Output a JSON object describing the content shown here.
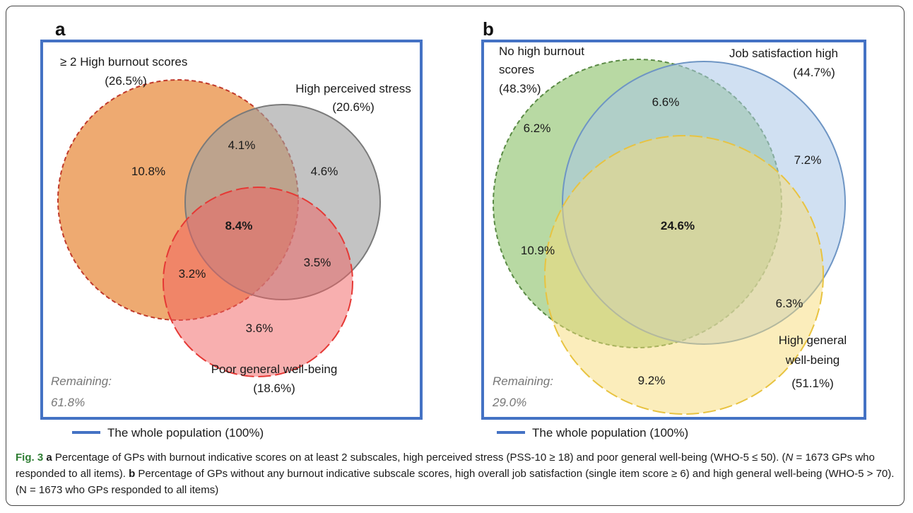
{
  "panels": [
    {
      "letter": "a",
      "sets": [
        {
          "label_line1": "≥ 2 High burnout scores",
          "label_line2": "(26.5%)",
          "color": "#e8893a"
        },
        {
          "label_line1": "High perceived stress",
          "label_line2": "(20.6%)",
          "color": "#9e9e9e"
        },
        {
          "label_line1": "Poor general well-being",
          "label_line2": "(18.6%)",
          "color": "#f26060"
        }
      ],
      "regions": {
        "only_burnout": "10.8%",
        "burnout_stress": "4.1%",
        "only_stress": "4.6%",
        "all_three": "8.4%",
        "burnout_wellbeing": "3.2%",
        "stress_wellbeing": "3.5%",
        "only_wellbeing": "3.6%"
      },
      "remaining_label": "Remaining:",
      "remaining_value": "61.8%",
      "legend": "The whole population (100%)"
    },
    {
      "letter": "b",
      "sets": [
        {
          "label_line1": "No high burnout",
          "label_line2": "scores",
          "label_line3": "(48.3%)",
          "color": "#8cc26a"
        },
        {
          "label_line1": "Job satisfaction high",
          "label_line2": "(44.7%)",
          "color": "#a9c6e8"
        },
        {
          "label_line1": "High general",
          "label_line2": "well-being",
          "label_line3": "(51.1%)",
          "color": "#f7dc78"
        }
      ],
      "regions": {
        "only_burnout": "6.2%",
        "burnout_job": "6.6%",
        "only_job": "7.2%",
        "all_three": "24.6%",
        "burnout_wellbeing": "10.9%",
        "job_wellbeing": "6.3%",
        "only_wellbeing": "9.2%"
      },
      "remaining_label": "Remaining:",
      "remaining_value": "29.0%",
      "legend": "The whole population (100%)"
    }
  ],
  "caption": {
    "fig_label": "Fig. 3",
    "a_letter": "a",
    "a_text": " Percentage of GPs with burnout indicative scores on at least 2 subscales, high perceived stress (PSS-10 ≥ 18) and poor general well-being (WHO-5 ≤ 50). (",
    "a_n": "N",
    "a_text2": " = 1673 GPs who responded to all items). ",
    "b_letter": "b",
    "b_text": " Percentage of GPs without any burnout indicative subscale scores, high overall job satisfaction (single item score ≥ 6) and high general well-being (WHO-5 > 70). (N = 1673 who GPs responded to all items)"
  },
  "colors": {
    "population_border": "#4472c4"
  }
}
